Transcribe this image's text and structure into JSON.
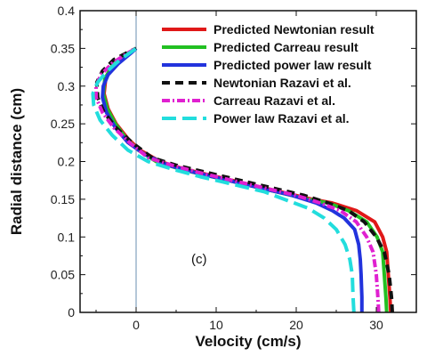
{
  "chart_data": {
    "type": "line",
    "xlabel": "Velocity (cm/s)",
    "ylabel": "Radial distance (cm)",
    "xlim": [
      -7,
      35
    ],
    "ylim": [
      0,
      0.4
    ],
    "x_ticks": [
      0,
      10,
      20,
      30
    ],
    "y_ticks": [
      0,
      0.05,
      0.1,
      0.15,
      0.2,
      0.25,
      0.3,
      0.35,
      0.4
    ],
    "x_tick_labels": [
      "0",
      "10",
      "20",
      "30"
    ],
    "y_tick_labels": [
      "0",
      "0.05",
      "0.1",
      "0.15",
      "0.2",
      "0.25",
      "0.3",
      "0.35",
      "0.4"
    ],
    "annotation": "(c)",
    "legend_position": "top-right",
    "reference_line_x": 0,
    "series": [
      {
        "name": "Predicted Newtonian result",
        "color": "#e01818",
        "style": "solid",
        "points": [
          [
            31.8,
            0
          ],
          [
            31.7,
            0.02
          ],
          [
            31.5,
            0.05
          ],
          [
            31.3,
            0.08
          ],
          [
            30.8,
            0.1
          ],
          [
            29.8,
            0.12
          ],
          [
            27.5,
            0.135
          ],
          [
            24.5,
            0.145
          ],
          [
            22,
            0.15
          ],
          [
            18,
            0.16
          ],
          [
            14,
            0.17
          ],
          [
            10,
            0.18
          ],
          [
            6,
            0.19
          ],
          [
            3,
            0.2
          ],
          [
            0.5,
            0.215
          ],
          [
            -1,
            0.23
          ],
          [
            -2.5,
            0.25
          ],
          [
            -3.5,
            0.27
          ],
          [
            -4,
            0.29
          ],
          [
            -3.8,
            0.31
          ],
          [
            -3,
            0.325
          ],
          [
            -1.5,
            0.34
          ],
          [
            0,
            0.35
          ]
        ]
      },
      {
        "name": "Predicted Carreau result",
        "color": "#22c022",
        "style": "solid",
        "points": [
          [
            31.3,
            0
          ],
          [
            31.2,
            0.02
          ],
          [
            31,
            0.05
          ],
          [
            30.8,
            0.08
          ],
          [
            30.1,
            0.1
          ],
          [
            28.8,
            0.12
          ],
          [
            26.5,
            0.135
          ],
          [
            24,
            0.145
          ],
          [
            21.5,
            0.15
          ],
          [
            17.5,
            0.16
          ],
          [
            13.5,
            0.17
          ],
          [
            9.5,
            0.18
          ],
          [
            5.5,
            0.19
          ],
          [
            2.5,
            0.2
          ],
          [
            0.3,
            0.215
          ],
          [
            -1.2,
            0.23
          ],
          [
            -2.6,
            0.25
          ],
          [
            -3.6,
            0.27
          ],
          [
            -4.1,
            0.29
          ],
          [
            -3.9,
            0.31
          ],
          [
            -3.1,
            0.325
          ],
          [
            -1.6,
            0.34
          ],
          [
            0,
            0.35
          ]
        ]
      },
      {
        "name": "Predicted power law result",
        "color": "#2233dd",
        "style": "solid",
        "points": [
          [
            28.2,
            0
          ],
          [
            28.2,
            0.02
          ],
          [
            28.1,
            0.05
          ],
          [
            28,
            0.07
          ],
          [
            27.8,
            0.09
          ],
          [
            27.3,
            0.11
          ],
          [
            26,
            0.125
          ],
          [
            24.5,
            0.135
          ],
          [
            22.5,
            0.145
          ],
          [
            19.5,
            0.155
          ],
          [
            15.5,
            0.165
          ],
          [
            11.5,
            0.175
          ],
          [
            7.5,
            0.185
          ],
          [
            4,
            0.195
          ],
          [
            1,
            0.21
          ],
          [
            -1,
            0.225
          ],
          [
            -2.6,
            0.245
          ],
          [
            -3.7,
            0.265
          ],
          [
            -4.2,
            0.285
          ],
          [
            -4.1,
            0.3
          ],
          [
            -3.5,
            0.315
          ],
          [
            -2.2,
            0.33
          ],
          [
            -0.5,
            0.345
          ],
          [
            0,
            0.35
          ]
        ]
      },
      {
        "name": "Newtonian Razavi et al.",
        "color": "#111111",
        "style": "dash",
        "points": [
          [
            32,
            0
          ],
          [
            31.9,
            0.02
          ],
          [
            31.6,
            0.05
          ],
          [
            31,
            0.08
          ],
          [
            30,
            0.1
          ],
          [
            28.5,
            0.12
          ],
          [
            26.5,
            0.135
          ],
          [
            24,
            0.145
          ],
          [
            21,
            0.155
          ],
          [
            17,
            0.165
          ],
          [
            13,
            0.175
          ],
          [
            9,
            0.185
          ],
          [
            5,
            0.195
          ],
          [
            2,
            0.205
          ],
          [
            -0.5,
            0.225
          ],
          [
            -2.5,
            0.245
          ],
          [
            -4,
            0.265
          ],
          [
            -4.8,
            0.285
          ],
          [
            -4.9,
            0.305
          ],
          [
            -4.2,
            0.32
          ],
          [
            -2.8,
            0.335
          ],
          [
            -1,
            0.345
          ],
          [
            0,
            0.35
          ]
        ]
      },
      {
        "name": "Carreau Razavi et al.",
        "color": "#e020d0",
        "style": "dashdot",
        "points": [
          [
            30.3,
            0
          ],
          [
            30.2,
            0.02
          ],
          [
            30,
            0.05
          ],
          [
            29.6,
            0.08
          ],
          [
            28.8,
            0.1
          ],
          [
            27.5,
            0.12
          ],
          [
            25.5,
            0.135
          ],
          [
            23,
            0.145
          ],
          [
            20,
            0.155
          ],
          [
            16,
            0.165
          ],
          [
            12,
            0.175
          ],
          [
            8,
            0.185
          ],
          [
            4.5,
            0.195
          ],
          [
            1.5,
            0.205
          ],
          [
            -0.8,
            0.225
          ],
          [
            -2.8,
            0.245
          ],
          [
            -4.2,
            0.265
          ],
          [
            -5,
            0.285
          ],
          [
            -5,
            0.3
          ],
          [
            -4.4,
            0.315
          ],
          [
            -3,
            0.33
          ],
          [
            -1.2,
            0.343
          ],
          [
            0,
            0.35
          ]
        ]
      },
      {
        "name": "Power law Razavi et al.",
        "color": "#22dddd",
        "style": "longdash",
        "points": [
          [
            27.2,
            0
          ],
          [
            27.1,
            0.02
          ],
          [
            27,
            0.05
          ],
          [
            26.7,
            0.07
          ],
          [
            26.1,
            0.09
          ],
          [
            25,
            0.11
          ],
          [
            23.5,
            0.125
          ],
          [
            21.5,
            0.138
          ],
          [
            19,
            0.148
          ],
          [
            16,
            0.16
          ],
          [
            12,
            0.17
          ],
          [
            8,
            0.18
          ],
          [
            4.5,
            0.19
          ],
          [
            1.5,
            0.2
          ],
          [
            -1,
            0.215
          ],
          [
            -3,
            0.235
          ],
          [
            -4.5,
            0.255
          ],
          [
            -5.3,
            0.275
          ],
          [
            -5.4,
            0.29
          ],
          [
            -4.8,
            0.305
          ],
          [
            -3.6,
            0.32
          ],
          [
            -2,
            0.335
          ],
          [
            0,
            0.35
          ]
        ]
      }
    ]
  }
}
